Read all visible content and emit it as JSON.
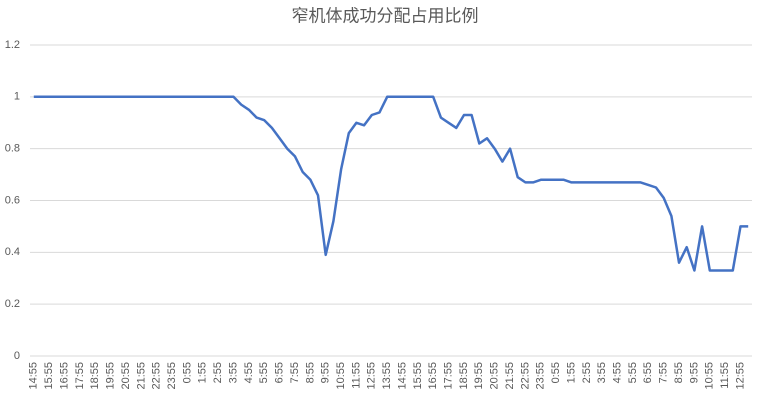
{
  "chart_data": {
    "type": "line",
    "title": "窄机体成功分配占用比例",
    "categories": [
      "14:55",
      null,
      "15:55",
      null,
      "16:55",
      null,
      "17:55",
      null,
      "18:55",
      null,
      "19:55",
      null,
      "20:55",
      null,
      "21:55",
      null,
      "22:55",
      null,
      "23:55",
      null,
      "0:55",
      null,
      "1:55",
      null,
      "2:55",
      null,
      "3:55",
      null,
      "4:55",
      null,
      "5:55",
      null,
      "6:55",
      null,
      "7:55",
      null,
      "8:55",
      null,
      "9:55",
      null,
      "10:55",
      null,
      "11:55",
      null,
      "12:55",
      null,
      "13:55",
      null,
      "14:55",
      null,
      "15:55",
      null,
      "16:55",
      null,
      "17:55",
      null,
      "18:55",
      null,
      "19:55",
      null,
      "20:55",
      null,
      "21:55",
      null,
      "22:55",
      null,
      "23:55",
      null,
      "0:55",
      null,
      "1:55",
      null,
      "2:55",
      null,
      "3:55",
      null,
      "4:55",
      null,
      "5:55",
      null,
      "6:55",
      null,
      "7:55",
      null,
      "8:55",
      null,
      "9:55",
      null,
      "10:55",
      null,
      "11:55",
      null,
      "12:55",
      null
    ],
    "values": [
      1,
      1,
      1,
      1,
      1,
      1,
      1,
      1,
      1,
      1,
      1,
      1,
      1,
      1,
      1,
      1,
      1,
      1,
      1,
      1,
      1,
      1,
      1,
      1,
      1,
      1,
      1,
      0.97,
      0.95,
      0.92,
      0.91,
      0.88,
      0.84,
      0.8,
      0.77,
      0.71,
      0.68,
      0.62,
      0.39,
      0.52,
      0.72,
      0.86,
      0.9,
      0.89,
      0.93,
      0.94,
      1,
      1,
      1,
      1,
      1,
      1,
      1,
      0.92,
      0.9,
      0.88,
      0.93,
      0.93,
      0.82,
      0.84,
      0.8,
      0.75,
      0.8,
      0.69,
      0.67,
      0.67,
      0.68,
      0.68,
      0.68,
      0.68,
      0.67,
      0.67,
      0.67,
      0.67,
      0.67,
      0.67,
      0.67,
      0.67,
      0.67,
      0.67,
      0.66,
      0.65,
      0.61,
      0.54,
      0.36,
      0.42,
      0.33,
      0.5,
      0.33,
      0.33,
      0.33,
      0.33,
      0.5,
      0.5
    ],
    "color": "#4472c4",
    "ylim": [
      0,
      1.2
    ],
    "yticks": [
      0,
      0.2,
      0.4,
      0.6,
      0.8,
      1,
      1.2
    ],
    "grid": true
  }
}
